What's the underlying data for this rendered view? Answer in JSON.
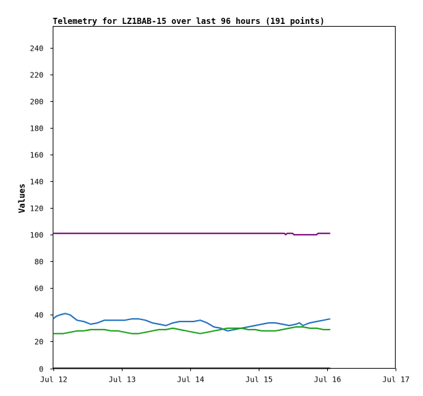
{
  "chart_data": {
    "type": "line",
    "title": "Telemetry for LZ1BAB-15 over last 96 hours (191 points)",
    "xlabel": "",
    "ylabel": "Values",
    "xlim": [
      0,
      5
    ],
    "ylim": [
      0,
      256
    ],
    "x_ticks": [
      {
        "label": "Jul 12",
        "value": 0
      },
      {
        "label": "Jul 13",
        "value": 1
      },
      {
        "label": "Jul 14",
        "value": 2
      },
      {
        "label": "Jul 15",
        "value": 3
      },
      {
        "label": "Jul 16",
        "value": 4
      },
      {
        "label": "Jul 17",
        "value": 5
      }
    ],
    "y_ticks": [
      0,
      20,
      40,
      60,
      80,
      100,
      120,
      140,
      160,
      180,
      200,
      220,
      240
    ],
    "grid": false,
    "legend": "none",
    "series": [
      {
        "color": "#7a007a",
        "x": [
          0,
          0.5,
          1,
          1.5,
          2,
          2.5,
          3,
          3.3,
          3.38,
          3.4,
          3.42,
          3.5,
          3.52,
          3.6,
          3.7,
          3.8,
          3.85,
          3.87,
          4.05
        ],
        "y": [
          101,
          101,
          101,
          101,
          101,
          101,
          101,
          101,
          101,
          100,
          101,
          101,
          100,
          100,
          100,
          100,
          100,
          101,
          101
        ]
      },
      {
        "color": "#1f6fc0",
        "x": [
          0,
          0.05,
          0.1,
          0.18,
          0.25,
          0.3,
          0.35,
          0.45,
          0.55,
          0.65,
          0.75,
          0.85,
          0.95,
          1.05,
          1.15,
          1.25,
          1.35,
          1.45,
          1.55,
          1.65,
          1.75,
          1.85,
          1.95,
          2.05,
          2.15,
          2.25,
          2.35,
          2.45,
          2.55,
          2.65,
          2.75,
          2.85,
          2.95,
          3.05,
          3.15,
          3.25,
          3.35,
          3.45,
          3.55,
          3.6,
          3.65,
          3.7,
          3.75,
          3.85,
          3.95,
          4.05
        ],
        "y": [
          37,
          39,
          40,
          41,
          40,
          38,
          36,
          35,
          33,
          34,
          36,
          36,
          36,
          36,
          37,
          37,
          36,
          34,
          33,
          32,
          34,
          35,
          35,
          35,
          36,
          34,
          31,
          30,
          28,
          29,
          30,
          31,
          32,
          33,
          34,
          34,
          33,
          32,
          33,
          34,
          32,
          33,
          34,
          35,
          36,
          37
        ]
      },
      {
        "color": "#1aa01a",
        "x": [
          0,
          0.15,
          0.25,
          0.35,
          0.45,
          0.55,
          0.65,
          0.75,
          0.85,
          0.95,
          1.05,
          1.15,
          1.25,
          1.35,
          1.45,
          1.55,
          1.65,
          1.75,
          1.85,
          1.95,
          2.05,
          2.15,
          2.25,
          2.35,
          2.45,
          2.55,
          2.65,
          2.75,
          2.85,
          2.95,
          3.05,
          3.15,
          3.25,
          3.35,
          3.45,
          3.55,
          3.65,
          3.75,
          3.85,
          3.95,
          4.05
        ],
        "y": [
          26,
          26,
          27,
          28,
          28,
          29,
          29,
          29,
          28,
          28,
          27,
          26,
          26,
          27,
          28,
          29,
          29,
          30,
          29,
          28,
          27,
          26,
          27,
          28,
          29,
          30,
          30,
          30,
          29,
          29,
          28,
          28,
          28,
          29,
          30,
          31,
          31,
          30,
          30,
          29,
          29
        ]
      },
      {
        "color": "#000000",
        "x": [
          0,
          4.05
        ],
        "y": [
          0,
          0
        ]
      }
    ]
  }
}
